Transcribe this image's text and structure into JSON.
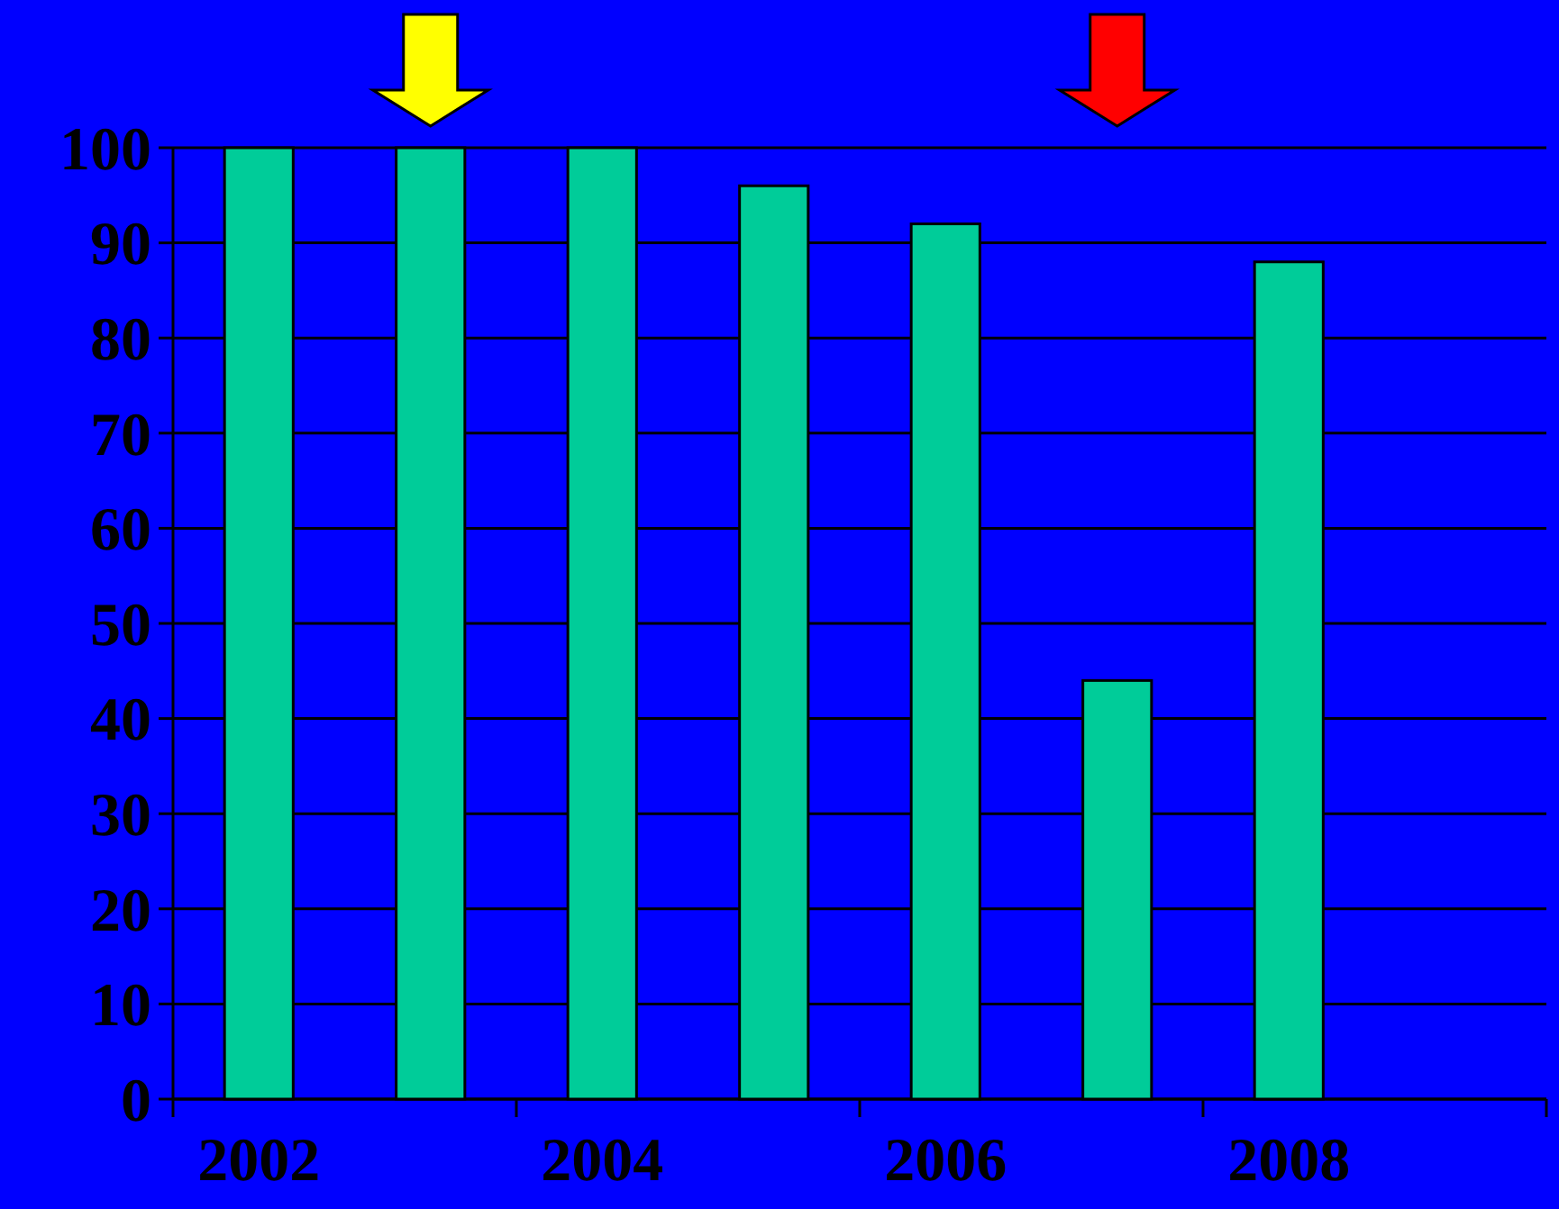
{
  "chart_data": {
    "type": "bar",
    "categories": [
      "2002",
      null,
      "2004",
      null,
      "2006",
      null,
      "2008",
      null
    ],
    "values": [
      100,
      100,
      100,
      96,
      92,
      44,
      88,
      null
    ],
    "color": "#00cc99",
    "ylim": [
      0,
      100
    ],
    "yticks": [
      0,
      10,
      20,
      30,
      40,
      50,
      60,
      70,
      80,
      90,
      100
    ],
    "grid": "y"
  }
}
